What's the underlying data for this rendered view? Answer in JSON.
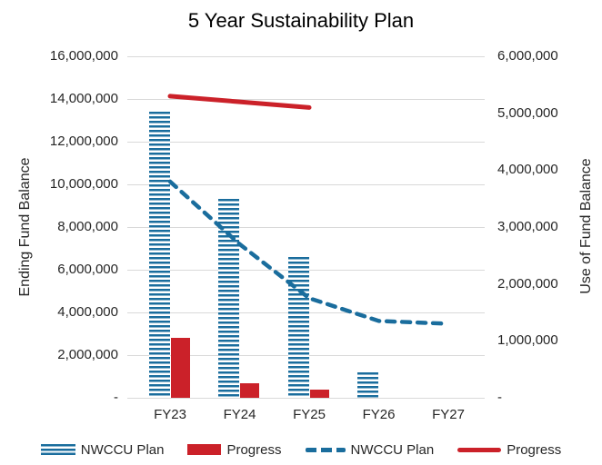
{
  "chart_data": {
    "type": "bar",
    "subtype": "combo-bar-line-dual-axis",
    "title": "5 Year Sustainability Plan",
    "categories": [
      "FY23",
      "FY24",
      "FY25",
      "FY26",
      "FY27"
    ],
    "grid": "horizontal",
    "left_axis": {
      "title": "Ending Fund Balance",
      "min": 0,
      "max": 16000000,
      "step": 2000000,
      "tick_labels": [
        "16,000,000",
        "14,000,000",
        "12,000,000",
        "10,000,000",
        "8,000,000",
        "6,000,000",
        "4,000,000",
        "2,000,000",
        "-"
      ]
    },
    "right_axis": {
      "title": "Use of Fund Balance",
      "min": 0,
      "max": 6000000,
      "step": 1000000,
      "tick_labels": [
        "6,000,000",
        "5,000,000",
        "4,000,000",
        "3,000,000",
        "2,000,000",
        "1,000,000",
        "-"
      ]
    },
    "bar_series": [
      {
        "name": "NWCCU Plan",
        "style": "striped",
        "color": "#1a6d9d",
        "axis": "left",
        "values": [
          13400000,
          9300000,
          6600000,
          1200000,
          null
        ]
      },
      {
        "name": "Progress",
        "style": "solid",
        "color": "#cb2129",
        "axis": "left",
        "values": [
          2800000,
          700000,
          400000,
          null,
          null
        ]
      }
    ],
    "line_series": [
      {
        "name": "NWCCU Plan",
        "style": "dashed",
        "color": "#1a6d9d",
        "axis": "right",
        "values": [
          3800000,
          2700000,
          1750000,
          1350000,
          1300000
        ]
      },
      {
        "name": "Progress",
        "style": "solid",
        "color": "#cb2129",
        "axis": "right",
        "values": [
          5300000,
          5200000,
          5100000,
          null,
          null
        ]
      }
    ],
    "legend": [
      {
        "label": "NWCCU Plan",
        "swatch": "striped-bar"
      },
      {
        "label": "Progress",
        "swatch": "solid-bar"
      },
      {
        "label": "NWCCU Plan",
        "swatch": "dashed-line"
      },
      {
        "label": "Progress",
        "swatch": "solid-line"
      }
    ],
    "colors": {
      "blue": "#1a6d9d",
      "red": "#cb2129",
      "gridline": "#d9d9d9",
      "text": "#262626"
    },
    "legend_position": "bottom"
  }
}
